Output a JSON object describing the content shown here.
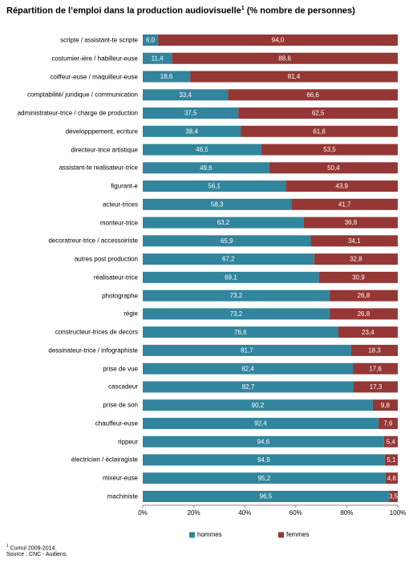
{
  "chart_data": {
    "type": "stacked-barh",
    "title": "Répartition de l’emploi dans la production audiovisuelle",
    "title_note": "1",
    "subtitle": "(% nombre de personnes)",
    "categories": [
      "scripte / assistant-te scripte",
      "costumier-ière / habilleur-euse",
      "coiffeur-euse / maquilleur-euse",
      "comptabilité/ juridique / communication",
      "administrateur-trice / charge de production",
      "développpement, ecriture",
      "directeur-trice artistique",
      "assistant-te realisateur-trice",
      "figurant-e",
      "acteur-trices",
      "monteur-trice",
      "decoratreur-trice / accessoiriste",
      "autres post production",
      "réalisateur-trice",
      "photographe",
      "régie",
      "constructeur-trices de decors",
      "dessinateur-trice / infographiste",
      "prise de vue",
      "cascadeur",
      "prise de son",
      "chauffeur-euse",
      "rippeur",
      "électricien / éclairagiste",
      "mixeur-euse",
      "machiniste"
    ],
    "series": [
      {
        "name": "hommes",
        "color": "#31859c",
        "values": [
          6.0,
          11.4,
          18.6,
          33.4,
          37.5,
          38.4,
          46.5,
          49.6,
          56.1,
          58.3,
          63.2,
          65.9,
          67.2,
          69.1,
          73.2,
          73.2,
          76.6,
          81.7,
          82.4,
          82.7,
          90.2,
          92.4,
          94.6,
          94.9,
          95.2,
          96.5
        ],
        "value_labels": [
          "6,0",
          "11,4",
          "18,6",
          "33,4",
          "37,5",
          "38,4",
          "46,5",
          "49,6",
          "56,1",
          "58,3",
          "63,2",
          "65,9",
          "67,2",
          "69,1",
          "73,2",
          "73,2",
          "76,6",
          "81,7",
          "82,4",
          "82,7",
          "90,2",
          "92,4",
          "94,6",
          "94,9",
          "95,2",
          "96,5"
        ]
      },
      {
        "name": "femmes",
        "color": "#953735",
        "values": [
          94.0,
          88.6,
          81.4,
          66.6,
          62.5,
          61.6,
          53.5,
          50.4,
          43.9,
          41.7,
          36.8,
          34.1,
          32.8,
          30.9,
          26.8,
          26.8,
          23.4,
          18.3,
          17.6,
          17.3,
          9.8,
          7.6,
          5.4,
          5.1,
          4.8,
          3.5
        ],
        "value_labels": [
          "94,0",
          "88,6",
          "81,4",
          "66,6",
          "62,5",
          "61,6",
          "53,5",
          "50,4",
          "43,9",
          "41,7",
          "36,8",
          "34,1",
          "32,8",
          "30,9",
          "26,8",
          "26,8",
          "23,4",
          "18,3",
          "17,6",
          "17,3",
          "9,8",
          "7,6",
          "5,4",
          "5,1",
          "4,8",
          "3,5"
        ]
      }
    ],
    "xlim": [
      0,
      100
    ],
    "xticks": [
      {
        "value": 0,
        "label": "0%"
      },
      {
        "value": 20,
        "label": "20%"
      },
      {
        "value": 40,
        "label": "40%"
      },
      {
        "value": 60,
        "label": "60%"
      },
      {
        "value": 80,
        "label": "80%"
      },
      {
        "value": 100,
        "label": "100%"
      }
    ],
    "legend": "bottom",
    "footnote": {
      "marker": "1",
      "text": "Cumul 2009-2014."
    },
    "source": "Source : CNC - Audiens."
  }
}
